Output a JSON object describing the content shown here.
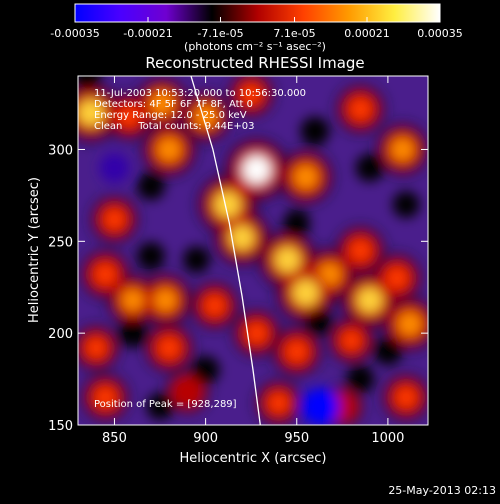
{
  "chart_data": {
    "type": "heatmap",
    "title": "Reconstructed RHESSI Image",
    "xlabel": "Heliocentric X (arcsec)",
    "ylabel": "Heliocentric Y (arcsec)",
    "xlim": [
      830,
      1022
    ],
    "ylim": [
      150,
      340
    ],
    "x_ticks": [
      "850",
      "900",
      "950",
      "1000"
    ],
    "x_tick_values": [
      850,
      900,
      950,
      1000
    ],
    "y_ticks": [
      "150",
      "200",
      "250",
      "300"
    ],
    "y_tick_values": [
      150,
      200,
      250,
      300
    ],
    "colorbar": {
      "ticks": [
        "-0.00035",
        "-0.00021",
        "-7.1e-05",
        "7.1e-05",
        "0.00021",
        "0.00035"
      ],
      "tick_values": [
        -0.00035,
        -0.00021,
        -7.1e-05,
        7.1e-05,
        0.00021,
        0.00035
      ],
      "range": [
        -0.00035,
        0.00035
      ],
      "units_label": "(photons cm⁻² s⁻¹ asec⁻²)",
      "colors": [
        "#0000ff",
        "#4a00ff",
        "#6f00d0",
        "#000000",
        "#b00000",
        "#ff4000",
        "#ff9a00",
        "#ffee40",
        "#ffffff"
      ]
    },
    "annotations": [
      "11-Jul-2003 10:53:20.000 to 10:56:30.000",
      "Detectors: 4F 5F 6F 7F 8F, Att 0",
      "Energy Range: 12.0 - 25.0 keV",
      "Clean     Total counts: 9.44E+03"
    ],
    "peak_label": "Position of Peak = [928,289]",
    "peak_position": [
      928,
      289
    ],
    "limb_curve": [
      [
        892,
        340
      ],
      [
        904,
        300
      ],
      [
        913,
        260
      ],
      [
        920,
        220
      ],
      [
        926,
        180
      ],
      [
        930,
        150
      ]
    ],
    "sources": [
      {
        "x": 837,
        "y": 320,
        "v": 0.9
      },
      {
        "x": 858,
        "y": 318,
        "v": 0.55
      },
      {
        "x": 876,
        "y": 325,
        "v": 0.7
      },
      {
        "x": 880,
        "y": 300,
        "v": 0.75
      },
      {
        "x": 900,
        "y": 318,
        "v": 0.65
      },
      {
        "x": 925,
        "y": 330,
        "v": 0.5
      },
      {
        "x": 985,
        "y": 322,
        "v": 0.6
      },
      {
        "x": 1008,
        "y": 300,
        "v": 0.7
      },
      {
        "x": 955,
        "y": 285,
        "v": 0.75
      },
      {
        "x": 928,
        "y": 289,
        "v": 1.0
      },
      {
        "x": 912,
        "y": 270,
        "v": 0.9
      },
      {
        "x": 850,
        "y": 262,
        "v": 0.55
      },
      {
        "x": 920,
        "y": 252,
        "v": 0.8
      },
      {
        "x": 945,
        "y": 240,
        "v": 0.85
      },
      {
        "x": 968,
        "y": 232,
        "v": 0.7
      },
      {
        "x": 985,
        "y": 245,
        "v": 0.6
      },
      {
        "x": 955,
        "y": 222,
        "v": 0.9
      },
      {
        "x": 990,
        "y": 218,
        "v": 0.85
      },
      {
        "x": 1005,
        "y": 230,
        "v": 0.6
      },
      {
        "x": 845,
        "y": 232,
        "v": 0.6
      },
      {
        "x": 860,
        "y": 218,
        "v": 0.65
      },
      {
        "x": 878,
        "y": 218,
        "v": 0.7
      },
      {
        "x": 905,
        "y": 215,
        "v": 0.55
      },
      {
        "x": 840,
        "y": 192,
        "v": 0.5
      },
      {
        "x": 880,
        "y": 192,
        "v": 0.6
      },
      {
        "x": 928,
        "y": 200,
        "v": 0.55
      },
      {
        "x": 950,
        "y": 190,
        "v": 0.6
      },
      {
        "x": 980,
        "y": 196,
        "v": 0.5
      },
      {
        "x": 1012,
        "y": 205,
        "v": 0.75
      },
      {
        "x": 845,
        "y": 165,
        "v": 0.55
      },
      {
        "x": 890,
        "y": 168,
        "v": 0.45
      },
      {
        "x": 940,
        "y": 162,
        "v": 0.5
      },
      {
        "x": 975,
        "y": 160,
        "v": 0.4
      },
      {
        "x": 1010,
        "y": 165,
        "v": 0.55
      },
      {
        "x": 870,
        "y": 280,
        "v": -0.5
      },
      {
        "x": 850,
        "y": 290,
        "v": -0.6
      },
      {
        "x": 835,
        "y": 340,
        "v": -0.5
      },
      {
        "x": 960,
        "y": 310,
        "v": -0.55
      },
      {
        "x": 990,
        "y": 290,
        "v": -0.5
      },
      {
        "x": 870,
        "y": 242,
        "v": -0.5
      },
      {
        "x": 895,
        "y": 240,
        "v": -0.45
      },
      {
        "x": 950,
        "y": 260,
        "v": -0.45
      },
      {
        "x": 1010,
        "y": 270,
        "v": -0.45
      },
      {
        "x": 860,
        "y": 200,
        "v": -0.55
      },
      {
        "x": 900,
        "y": 180,
        "v": -0.5
      },
      {
        "x": 962,
        "y": 206,
        "v": -0.45
      },
      {
        "x": 963,
        "y": 160,
        "v": -1.0
      },
      {
        "x": 985,
        "y": 175,
        "v": -0.5
      },
      {
        "x": 1000,
        "y": 190,
        "v": -0.5
      },
      {
        "x": 875,
        "y": 160,
        "v": -0.45
      }
    ]
  },
  "timestamp": "25-May-2013 02:13"
}
